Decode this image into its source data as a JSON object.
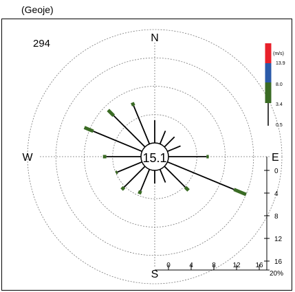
{
  "station_label": "(Geoje)",
  "chart_data": {
    "type": "polar-bar",
    "count": "294",
    "calm_percent": "15.1",
    "directions": {
      "north": "N",
      "east": "E",
      "south": "S",
      "west": "W"
    },
    "radial_ticks": [
      0,
      4,
      8,
      12,
      16
    ],
    "radial_max_label": "20%",
    "radial_ticks_y": [
      0,
      4,
      8,
      12,
      16
    ],
    "speed_scale": {
      "unit_label": "(m/s)",
      "thresholds": [
        "13.9",
        "8.0",
        "3.4",
        "0.5"
      ],
      "colors": [
        "#e8202a",
        "#2b5aa8",
        "#3a6b24",
        "#000000"
      ]
    },
    "sectors": [
      {
        "dir": "N",
        "angle": 0,
        "black": 4,
        "green": 0.0
      },
      {
        "dir": "NNE",
        "angle": 22.5,
        "black": 2.5,
        "green": 0.0
      },
      {
        "dir": "NE",
        "angle": 45,
        "black": 2.5,
        "green": 0.0
      },
      {
        "dir": "ENE",
        "angle": 67.5,
        "black": 2.5,
        "green": 0.0
      },
      {
        "dir": "E",
        "angle": 90,
        "black": 6.7,
        "green": 0.4
      },
      {
        "dir": "ESE",
        "angle": 112.5,
        "black": 12.7,
        "green": 2.3
      },
      {
        "dir": "SE",
        "angle": 135,
        "black": 5.2,
        "green": 0.8
      },
      {
        "dir": "SSE",
        "angle": 157.5,
        "black": 2.5,
        "green": 0.0
      },
      {
        "dir": "S",
        "angle": 180,
        "black": 2.3,
        "green": 0.0
      },
      {
        "dir": "SSW",
        "angle": 202.5,
        "black": 4.1,
        "green": 0.6
      },
      {
        "dir": "SW",
        "angle": 225,
        "black": 5.2,
        "green": 0.6
      },
      {
        "dir": "WSW",
        "angle": 247.5,
        "black": 4.7,
        "green": 0.3
      },
      {
        "dir": "W",
        "angle": 270,
        "black": 6.1,
        "green": 0.6
      },
      {
        "dir": "WNW",
        "angle": 292.5,
        "black": 9.3,
        "green": 1.7
      },
      {
        "dir": "NW",
        "angle": 315,
        "black": 7.8,
        "green": 1.4
      },
      {
        "dir": "NNW",
        "angle": 337.5,
        "black": 7.3,
        "green": 0.6
      }
    ]
  }
}
